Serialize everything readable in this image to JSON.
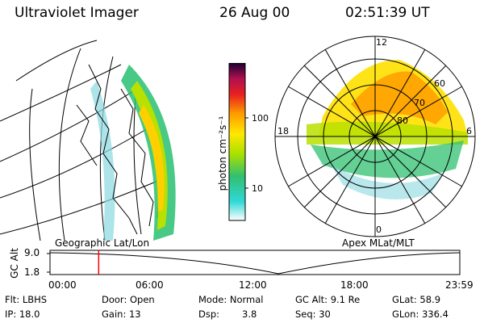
{
  "header": {
    "title": "Ultraviolet Imager",
    "date": "26 Aug 00",
    "time": "02:51:39 UT"
  },
  "colorbar": {
    "unit": "photon cm⁻²s⁻¹",
    "ticks": [
      "100",
      "10"
    ]
  },
  "left_panel": {
    "label": "Geographic Lat/Lon"
  },
  "right_panel": {
    "label": "Apex MLat/MLT",
    "mlt_labels": {
      "top": "12",
      "left": "18",
      "right": "6",
      "bottom": "0"
    },
    "lat_labels": [
      "60",
      "70",
      "80"
    ]
  },
  "altitude_plot": {
    "ylabel": "GC Alt",
    "yticks": [
      "9.0",
      "1.8"
    ],
    "xticks": [
      "00:00",
      "06:00",
      "12:00",
      "18:00",
      "23:59"
    ],
    "marker_time": "02:51"
  },
  "info": {
    "flt": "Flt: LBHS",
    "ip": "IP: 18.0",
    "door": "Door: Open",
    "gain": "Gain: 13",
    "mode": "Mode: Normal",
    "dsp_label": "Dsp:",
    "dsp_value": "3.8",
    "gc_alt": "GC Alt: 9.1 Re",
    "seq": "Seq: 30",
    "glat": "GLat: 58.9",
    "glon": "GLon: 336.4"
  },
  "colors": {
    "marker": "#ff0000",
    "aurora_high": "#ff9900",
    "aurora_mid": "#ffd000",
    "aurora_low": "#30c060"
  }
}
